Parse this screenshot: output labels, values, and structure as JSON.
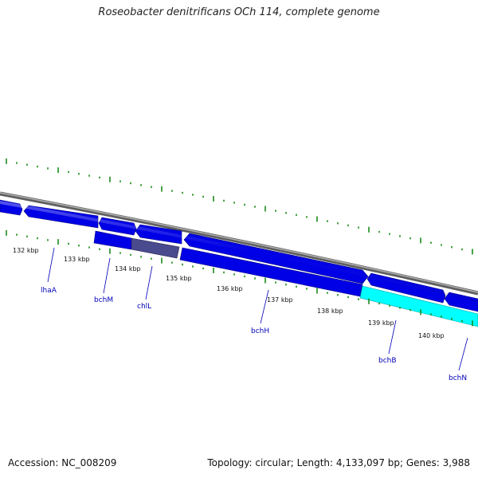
{
  "title": "Roseobacter denitrificans OCh 114, complete genome",
  "footer": {
    "accession": "Accession: NC_008209",
    "summary": "Topology: circular; Length: 4,133,097 bp; Genes: 3,988"
  },
  "colors": {
    "backbone": "#8a8a8a",
    "gene": "#0000e6",
    "gene_selected": "#4a4a8e",
    "gene_highlight": "#00ffff",
    "tick": "#1a8a1a",
    "label": "#0000b8"
  },
  "kbp_labels": [
    "132 kbp",
    "133 kbp",
    "134 kbp",
    "135 kbp",
    "136 kbp",
    "137 kbp",
    "138 kbp",
    "139 kbp",
    "140 kbp"
  ],
  "gene_labels": [
    "lhaA",
    "bchM",
    "chlL",
    "bchH",
    "bchB",
    "bchN"
  ]
}
